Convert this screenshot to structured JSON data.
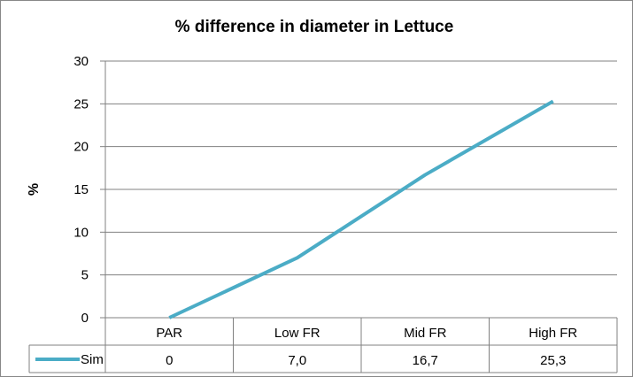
{
  "chart_data": {
    "type": "line",
    "title": "% difference in diameter in Lettuce",
    "ylabel": "%",
    "xlabel": "",
    "ylim": [
      0,
      30
    ],
    "yticks": [
      0,
      5,
      10,
      15,
      20,
      25,
      30
    ],
    "ytick_labels": [
      "0",
      "5",
      "10",
      "15",
      "20",
      "25",
      "30"
    ],
    "categories": [
      "PAR",
      "Low FR",
      "Mid FR",
      "High FR"
    ],
    "grid": true,
    "legend": "data-table-left",
    "series": [
      {
        "name": "Sim",
        "values": [
          0,
          7.0,
          16.7,
          25.3
        ],
        "value_labels": [
          "0",
          "7,0",
          "16,7",
          "25,3"
        ],
        "color": "#4BACC6"
      }
    ]
  }
}
